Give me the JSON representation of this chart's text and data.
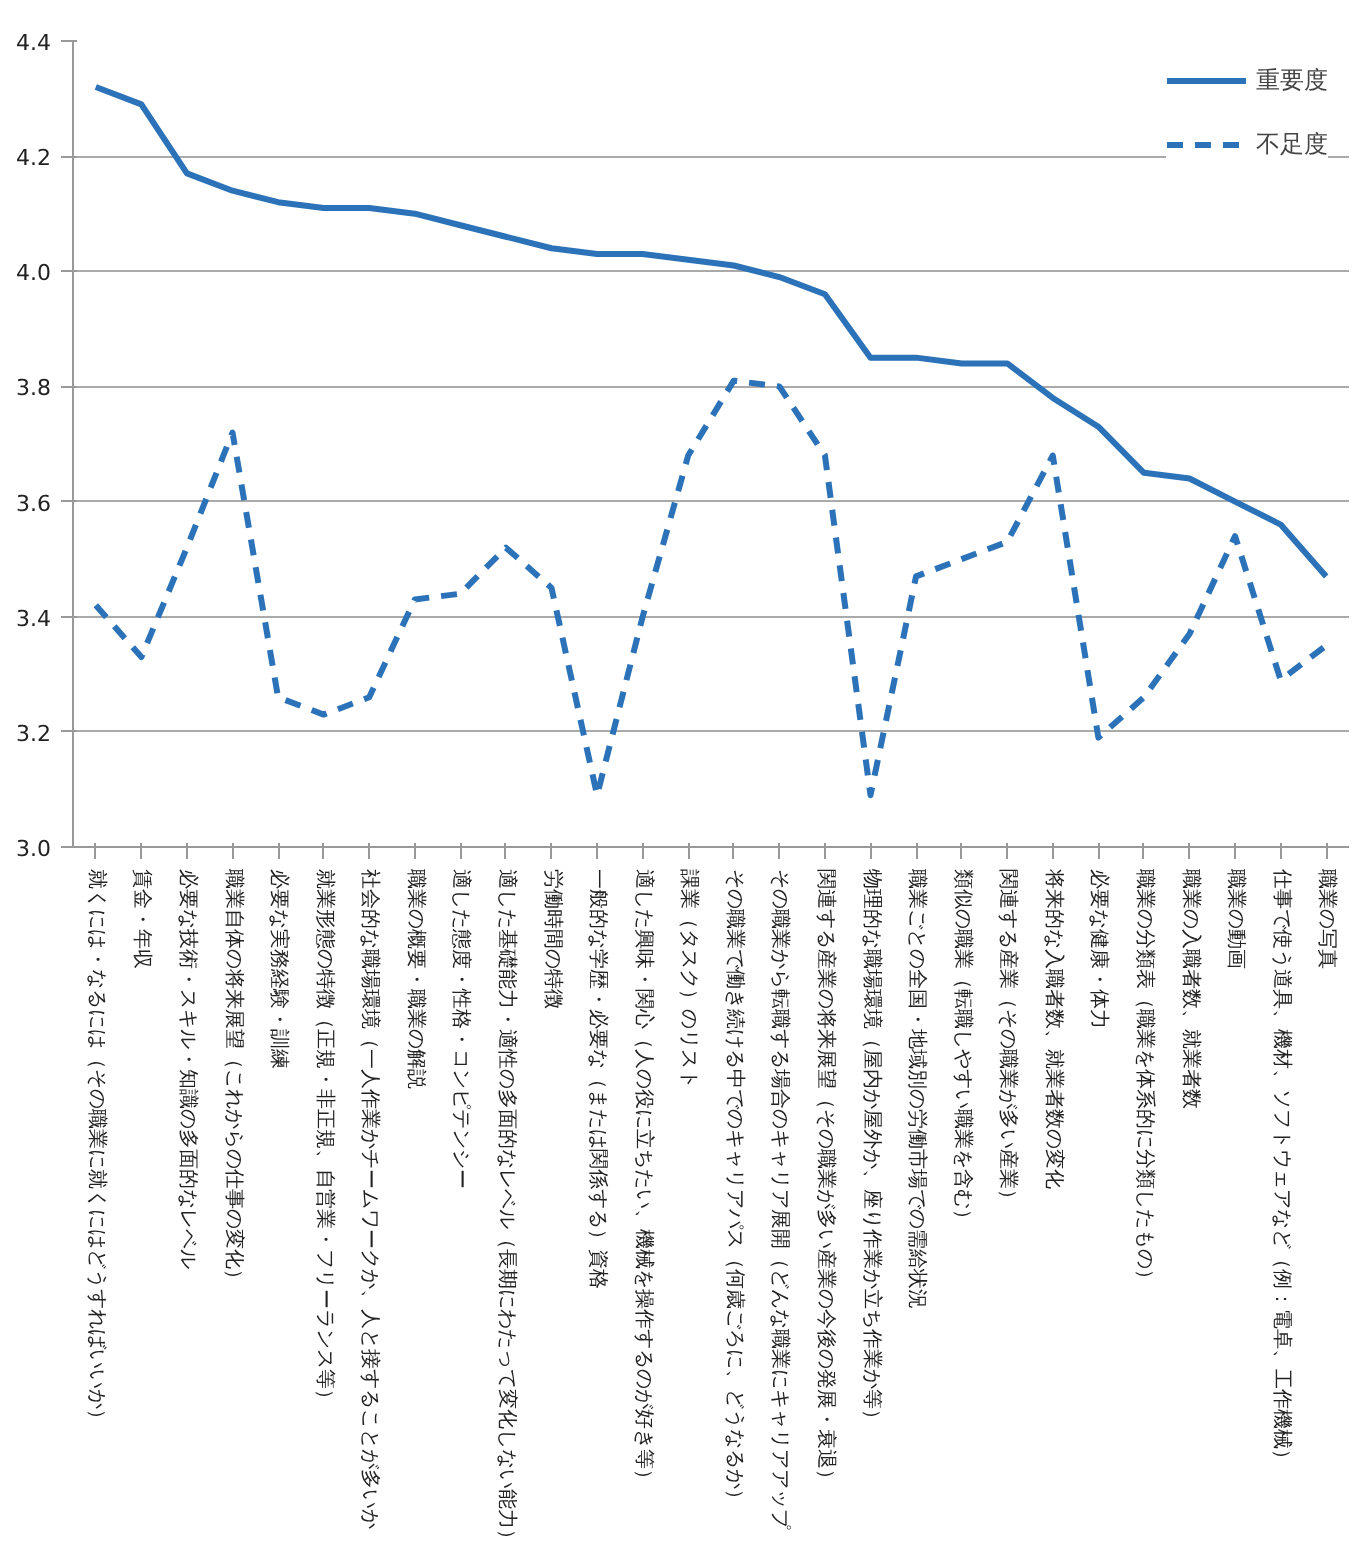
{
  "chart_data": {
    "type": "line",
    "categories": [
      "就くには・なるには（その職業に就くにはどうすればいいか）",
      "賃金・年収",
      "必要な技術・スキル・知識の多面的なレベル",
      "職業自体の将来展望（これからの仕事の変化）",
      "必要な実務経験・訓練",
      "就業形態の特徴（正規・非正規、自営業・フリーランス等）",
      "社会的な職場環境（一人作業かチームワークか、人と接することが多いか",
      "職業の概要・職業の解説",
      "適した態度・性格・コンピテンシー",
      "適した基礎能力・適性の多面的なレベル（長期にわたって変化しない能力）",
      "労働時間の特徴",
      "一般的な学歴・必要な（または関係する）資格",
      "適した興味・関心（人の役に立ちたい、機械を操作するのが好き等）",
      "課業（タスク）のリスト",
      "その職業で働き続ける中でのキャリアパス（何歳ごろに、どうなるか）",
      "その職業から転職する場合のキャリア展開（どんな職業にキャリアアップ",
      "関連する産業の将来展望（その職業が多い産業の今後の発展・衰退）",
      "物理的な職場環境（屋内か屋外か、座り作業か立ち作業か等）",
      "職業ごとの全国・地域別の労働市場での需給状況",
      "類似の職業（転職しやすい職業を含む）",
      "関連する産業（その職業が多い産業）",
      "将来的な入職者数、就業者数の変化",
      "必要な健康・体力",
      "職業の分類表（職業を体系的に分類したもの）",
      "職業の入職者数、就業者数",
      "職業の動画",
      "仕事で使う道具、機材、ソフトウェアなど（例：電卓、工作機械）",
      "職業の写真"
    ],
    "series": [
      {
        "name": "重要度",
        "color": "#2b72b8",
        "line_style": "solid",
        "values": [
          4.32,
          4.29,
          4.17,
          4.14,
          4.12,
          4.11,
          4.11,
          4.1,
          4.08,
          4.06,
          4.04,
          4.03,
          4.03,
          4.02,
          4.01,
          3.99,
          3.96,
          3.85,
          3.85,
          3.84,
          3.84,
          3.78,
          3.73,
          3.65,
          3.64,
          3.6,
          3.56,
          3.47
        ]
      },
      {
        "name": "不足度",
        "color": "#2b72b8",
        "line_style": "dashed",
        "values": [
          3.42,
          3.33,
          3.52,
          3.72,
          3.26,
          3.23,
          3.26,
          3.43,
          3.44,
          3.52,
          3.45,
          3.09,
          3.4,
          3.68,
          3.81,
          3.8,
          3.68,
          3.09,
          3.47,
          3.5,
          3.53,
          3.68,
          3.19,
          3.26,
          3.37,
          3.54,
          3.29,
          3.35
        ]
      }
    ],
    "ylim": [
      3.0,
      4.4
    ],
    "yticks": [
      {
        "value": 3.0,
        "label": "3.0"
      },
      {
        "value": 3.2,
        "label": "3.2"
      },
      {
        "value": 3.4,
        "label": "3.4"
      },
      {
        "value": 3.6,
        "label": "3.6"
      },
      {
        "value": 3.8,
        "label": "3.8"
      },
      {
        "value": 4.0,
        "label": "4.0"
      },
      {
        "value": 4.2,
        "label": "4.2"
      },
      {
        "value": 4.4,
        "label": "4.4"
      }
    ],
    "grid": "y",
    "legend": "top right"
  }
}
